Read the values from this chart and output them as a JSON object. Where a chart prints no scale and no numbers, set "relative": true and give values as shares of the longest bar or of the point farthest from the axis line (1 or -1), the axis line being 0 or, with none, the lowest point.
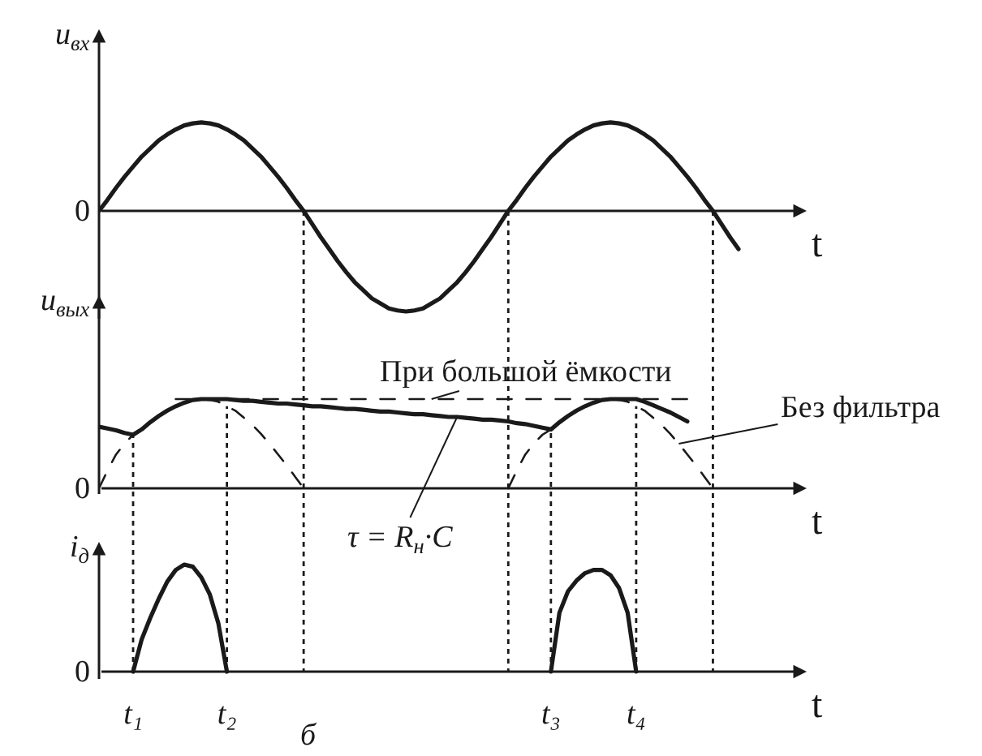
{
  "chart_data": [
    {
      "type": "line",
      "ylabel": "u$_{вх}$",
      "xlabel": "t",
      "relative": true,
      "grid": "x",
      "categories": [
        null,
        null,
        null,
        null,
        null,
        null,
        null,
        null,
        null,
        null,
        null,
        null,
        null,
        null,
        null,
        null,
        null,
        null,
        null,
        null,
        null,
        null,
        null,
        null,
        null,
        null,
        null,
        null,
        null,
        null,
        null,
        null,
        null,
        null,
        null,
        null,
        null,
        null,
        null,
        null,
        null,
        null,
        null,
        null,
        null,
        null,
        null,
        null,
        null,
        null,
        null,
        null,
        null,
        null,
        null,
        null,
        null,
        null,
        null,
        null,
        null,
        null,
        null,
        null,
        null,
        null,
        null,
        null,
        null,
        null,
        null,
        null,
        null,
        null,
        null,
        null,
        null,
        null,
        null,
        null,
        null,
        null,
        null,
        null
      ],
      "series": [
        {
          "color": "#1a1a1a",
          "line_style": "solid",
          "values": [
            0,
            0.11,
            0.23,
            0.34,
            0.44,
            0.54,
            0.62,
            0.7,
            0.76,
            0.81,
            0.85,
            0.87,
            0.88,
            0.87,
            0.85,
            0.81,
            0.76,
            0.7,
            0.62,
            0.54,
            0.44,
            0.34,
            0.23,
            0.11,
            0,
            -0.13,
            -0.26,
            -0.38,
            -0.5,
            -0.61,
            -0.71,
            -0.79,
            -0.87,
            -0.92,
            -0.97,
            -0.99,
            -1,
            -0.99,
            -0.97,
            -0.92,
            -0.87,
            -0.79,
            -0.71,
            -0.61,
            -0.5,
            -0.38,
            -0.26,
            -0.13,
            0,
            0.11,
            0.23,
            0.34,
            0.44,
            0.54,
            0.62,
            0.7,
            0.76,
            0.81,
            0.85,
            0.87,
            0.88,
            0.87,
            0.85,
            0.81,
            0.76,
            0.7,
            0.62,
            0.54,
            0.44,
            0.34,
            0.23,
            0.11,
            0,
            -0.13,
            -0.26,
            -0.38,
            null,
            null,
            null,
            null,
            null,
            null,
            null,
            null
          ]
        }
      ],
      "annotations": [
        "0"
      ]
    },
    {
      "type": "line",
      "ylabel": "u$_{вых}$",
      "xlabel": "t",
      "relative": true,
      "categories": [
        null,
        null,
        null,
        null,
        null,
        null,
        null,
        null,
        null,
        null,
        null,
        null,
        null,
        null,
        null,
        null,
        null,
        null,
        null,
        null,
        null,
        null,
        null,
        null,
        null,
        null,
        null,
        null,
        null,
        null,
        null,
        null,
        null,
        null,
        null,
        null,
        null,
        null,
        null,
        null,
        null,
        null,
        null,
        null,
        null,
        null,
        null,
        null,
        null,
        null,
        null,
        null,
        null,
        null,
        null,
        null,
        null,
        null,
        null,
        null,
        null,
        null,
        null,
        null,
        null,
        null,
        null,
        null,
        null,
        null,
        null,
        null,
        null,
        null,
        null,
        null,
        null,
        null,
        null,
        null,
        null,
        null,
        null,
        null
      ],
      "series": [
        {
          "name": "Без фильтра",
          "color": "#1a1a1a",
          "line_style": "dashed",
          "values": [
            0,
            0.2,
            0.38,
            0.5,
            0.6,
            0.66,
            0.74,
            0.81,
            0.87,
            0.92,
            0.96,
            0.99,
            1,
            0.99,
            0.97,
            0.92,
            0.87,
            0.79,
            0.71,
            0.61,
            0.5,
            0.38,
            0.26,
            0.13,
            0,
            null,
            null,
            null,
            null,
            null,
            null,
            null,
            null,
            null,
            null,
            null,
            null,
            null,
            null,
            null,
            null,
            null,
            null,
            null,
            null,
            null,
            null,
            null,
            0,
            0.2,
            0.38,
            0.5,
            0.6,
            0.66,
            0.74,
            0.81,
            0.87,
            0.92,
            0.96,
            0.99,
            1,
            0.99,
            0.97,
            0.92,
            0.87,
            0.79,
            0.71,
            0.61,
            0.5,
            0.38,
            0.26,
            0.13,
            0,
            null,
            null,
            null,
            null,
            null,
            null,
            null,
            null,
            null,
            null,
            null
          ]
        },
        {
          "name": "При большой ёмкости",
          "color": "#1a1a1a",
          "line_style": "dashed",
          "values": [
            null,
            null,
            null,
            null,
            null,
            null,
            null,
            null,
            null,
            1,
            1,
            1,
            1,
            1,
            1,
            1,
            1,
            1,
            1,
            1,
            1,
            1,
            1,
            1,
            1,
            1,
            1,
            1,
            1,
            1,
            1,
            1,
            1,
            1,
            1,
            1,
            1,
            1,
            1,
            1,
            1,
            1,
            1,
            1,
            1,
            1,
            1,
            1,
            1,
            1,
            1,
            1,
            1,
            1,
            1,
            1,
            1,
            1,
            1,
            1,
            1,
            1,
            1,
            1,
            1,
            1,
            1,
            1,
            1,
            1,
            1,
            null,
            null,
            null,
            null,
            null,
            null,
            null,
            null,
            null,
            null,
            null,
            null,
            null
          ]
        },
        {
          "color": "#1a1a1a",
          "line_style": "solid",
          "values": [
            0.69,
            0.67,
            0.65,
            0.62,
            0.6,
            0.66,
            0.74,
            0.81,
            0.87,
            0.92,
            0.96,
            0.99,
            1,
            1,
            1,
            1,
            0.99,
            0.98,
            0.98,
            0.97,
            0.96,
            0.95,
            0.95,
            0.94,
            0.93,
            0.92,
            0.92,
            0.91,
            0.9,
            0.89,
            0.89,
            0.88,
            0.87,
            0.86,
            0.86,
            0.85,
            0.84,
            0.83,
            0.83,
            0.82,
            0.81,
            0.8,
            0.8,
            0.79,
            0.78,
            0.77,
            0.77,
            0.76,
            0.75,
            0.73,
            0.72,
            0.7,
            0.68,
            0.66,
            0.74,
            0.81,
            0.87,
            0.92,
            0.96,
            0.99,
            1,
            1,
            1,
            1,
            0.97,
            0.93,
            0.89,
            0.85,
            0.8,
            0.75,
            null,
            null,
            null,
            null,
            null,
            null,
            null,
            null,
            null,
            null,
            null,
            null,
            null,
            null
          ]
        }
      ],
      "annotations": [
        "τ = R$_{н}$·C",
        "0"
      ]
    },
    {
      "type": "line",
      "ylabel": "i$_{д}$",
      "xlabel": "t",
      "relative": true,
      "categories": [
        null,
        null,
        null,
        null,
        "t₁",
        null,
        null,
        null,
        null,
        null,
        null,
        null,
        null,
        null,
        null,
        "t₂",
        null,
        null,
        null,
        null,
        null,
        null,
        null,
        null,
        null,
        null,
        null,
        null,
        null,
        null,
        null,
        null,
        null,
        null,
        null,
        null,
        null,
        null,
        null,
        null,
        null,
        null,
        null,
        null,
        null,
        null,
        null,
        null,
        null,
        null,
        null,
        null,
        null,
        "t₃",
        null,
        null,
        null,
        null,
        null,
        null,
        null,
        null,
        null,
        "t₄",
        null,
        null,
        null,
        null,
        null,
        null,
        null,
        null,
        null,
        null,
        null,
        null,
        null,
        null,
        null,
        null,
        null,
        null,
        null,
        null
      ],
      "series": [
        {
          "color": "#1a1a1a",
          "line_style": "solid",
          "values": [
            null,
            null,
            null,
            null,
            0,
            0.3,
            0.5,
            0.68,
            0.84,
            0.95,
            1,
            0.98,
            0.88,
            0.72,
            0.45,
            0,
            null,
            null,
            null,
            null,
            null,
            null,
            null,
            null,
            null,
            null,
            null,
            null,
            null,
            null,
            null,
            null,
            null,
            null,
            null,
            null,
            null,
            null,
            null,
            null,
            null,
            null,
            null,
            null,
            null,
            null,
            null,
            null,
            null,
            null,
            null,
            null,
            null,
            0,
            0.55,
            0.75,
            0.85,
            0.92,
            0.95,
            0.95,
            0.9,
            0.78,
            0.55,
            0,
            null,
            null,
            null,
            null,
            null,
            null,
            null,
            null,
            null,
            null,
            null,
            null,
            null,
            null,
            null,
            null,
            null,
            null,
            null,
            null
          ]
        }
      ],
      "ref_lines": [
        {
          "axis": "x",
          "value": "t₁",
          "line_style": "dotted"
        },
        {
          "axis": "x",
          "value": "t₂",
          "line_style": "dotted"
        },
        {
          "axis": "x",
          "value": "t₃",
          "line_style": "dotted"
        },
        {
          "axis": "x",
          "value": "t₄",
          "line_style": "dotted"
        }
      ],
      "annotations": [
        "б",
        "0"
      ]
    }
  ]
}
